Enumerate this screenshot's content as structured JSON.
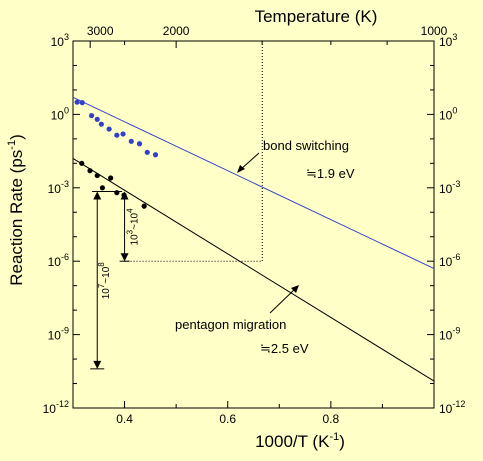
{
  "chart_data": {
    "type": "scatter",
    "xlabel": "1000/T (K",
    "xlabel_sup": "-1",
    "xlabel_end": ")",
    "ylabel": "Reaction Rate (ps",
    "ylabel_sup": "-1",
    "ylabel_end": ")",
    "top_label": "Temperature (K)",
    "x_range": [
      0.3,
      1.0
    ],
    "y_log_range": [
      -12,
      3
    ],
    "x_ticks": [
      "0.4",
      "0.6",
      "0.8"
    ],
    "y_tick_base": "10",
    "y_tick_exps": [
      "3",
      "0",
      "-3",
      "-6",
      "-9",
      "-12"
    ],
    "top_ticks": [
      "3000",
      "2000",
      "1000"
    ],
    "series": [
      {
        "name": "bond switching",
        "color": "#3340cc",
        "points": [
          [
            0.308,
            0.5
          ],
          [
            0.318,
            0.48
          ],
          [
            0.336,
            -0.05
          ],
          [
            0.347,
            -0.2
          ],
          [
            0.355,
            -0.4
          ],
          [
            0.37,
            -0.6
          ],
          [
            0.385,
            -0.85
          ],
          [
            0.397,
            -0.8
          ],
          [
            0.413,
            -1.1
          ],
          [
            0.429,
            -1.2
          ],
          [
            0.444,
            -1.55
          ],
          [
            0.46,
            -1.65
          ]
        ],
        "fit": [
          [
            0.3,
            0.7
          ],
          [
            1.0,
            -6.3
          ]
        ]
      },
      {
        "name": "pentagon migration",
        "color": "#000000",
        "points": [
          [
            0.317,
            -2.0
          ],
          [
            0.333,
            -2.3
          ],
          [
            0.347,
            -2.5
          ],
          [
            0.357,
            -3.0
          ],
          [
            0.373,
            -2.6
          ],
          [
            0.385,
            -3.2
          ],
          [
            0.399,
            -3.3
          ],
          [
            0.438,
            -3.75
          ]
        ],
        "fit": [
          [
            0.3,
            -1.8
          ],
          [
            1.0,
            -10.9
          ]
        ]
      }
    ],
    "annotations": {
      "bond_label": "bond switching",
      "bond_energy": "≒1.9 eV",
      "pentagon_label": "pentagon migration",
      "pentagon_energy": "≒2.5 eV",
      "range_big": "10",
      "range_big_sup1": "7",
      "range_big_mid": "~10",
      "range_big_sup2": "8",
      "range_small": "10",
      "range_small_sup1": "3",
      "range_small_mid": "~10",
      "range_small_sup2": "4"
    },
    "reference_x": 0.667
  }
}
